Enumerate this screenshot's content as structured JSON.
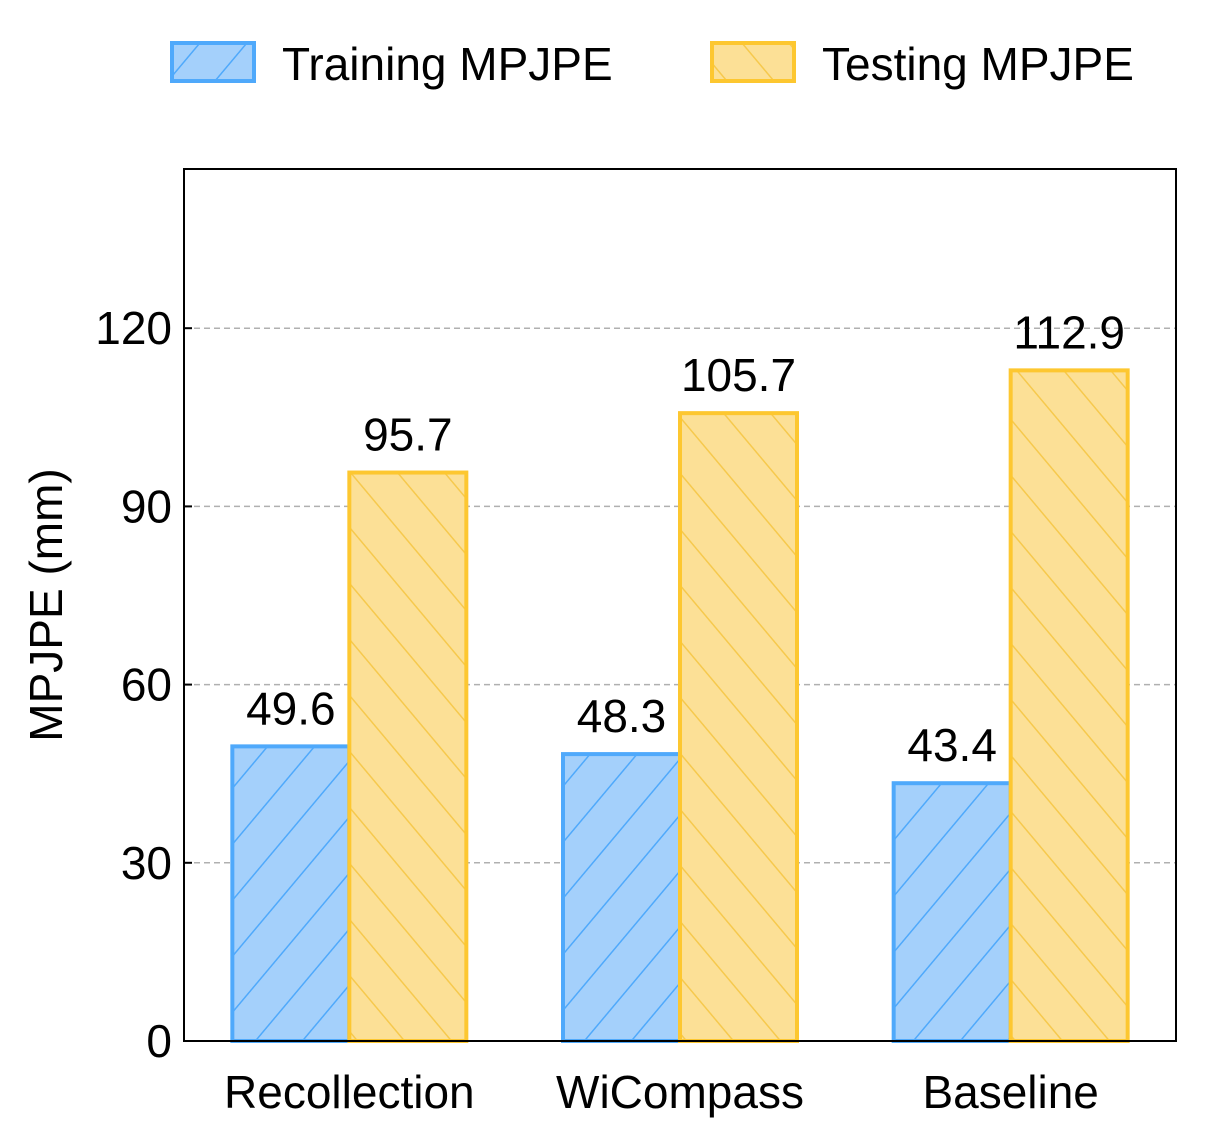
{
  "chart_data": {
    "type": "bar",
    "title": "",
    "xlabel": "",
    "ylabel": "MPJPE (mm)",
    "categories": [
      "Recollection",
      "WiCompass",
      "Baseline"
    ],
    "series": [
      {
        "name": "Training MPJPE",
        "values": [
          49.6,
          48.3,
          43.4
        ],
        "fill": "#a4d0fb",
        "stroke": "#4fa9fb",
        "hatch": "/"
      },
      {
        "name": "Testing MPJPE",
        "values": [
          95.7,
          105.7,
          112.9
        ],
        "fill": "#fce096",
        "stroke": "#fdc730",
        "hatch": "\\"
      }
    ],
    "data_labels": [
      [
        "49.6",
        "48.3",
        "43.4"
      ],
      [
        "95.7",
        "105.7",
        "112.9"
      ]
    ],
    "ylim": [
      0,
      146.8
    ],
    "yticks": [
      "0",
      "30",
      "60",
      "90",
      "120"
    ],
    "grid": "y dashed",
    "legend_placement": "top"
  }
}
